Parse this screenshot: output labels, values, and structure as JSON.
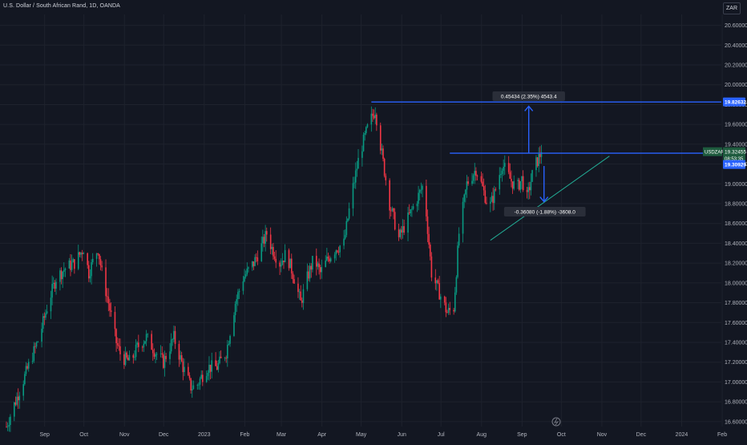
{
  "header": {
    "title": "U.S. Dollar / South African Rand, 1D, OANDA",
    "currency": "ZAR"
  },
  "colors": {
    "background": "#131722",
    "grid": "#1e222d",
    "up_candle": "#089981",
    "down_candle": "#f23645",
    "drawing_blue": "#2962ff",
    "trendline": "#22ab94",
    "axis_text": "#b2b5be"
  },
  "chart_data": {
    "type": "candlestick",
    "symbol": "USDZAR",
    "y_ticks": [
      16.6,
      16.8,
      17.0,
      17.2,
      17.4,
      17.6,
      17.8,
      18.0,
      18.2,
      18.4,
      18.6,
      18.8,
      19.0,
      19.2,
      19.4,
      19.6,
      19.8,
      20.0,
      20.2,
      20.4,
      20.6
    ],
    "ylim": [
      16.55,
      20.71
    ],
    "x_labels": [
      "Sep",
      "Oct",
      "Nov",
      "Dec",
      "2023",
      "Feb",
      "Mar",
      "Apr",
      "May",
      "Jun",
      "Jul",
      "Aug",
      "Sep",
      "Oct",
      "Nov",
      "Dec",
      "2024",
      "Feb"
    ],
    "x_label_months_offset": [
      0,
      1,
      2,
      3,
      4,
      5,
      6,
      7,
      8,
      9,
      10,
      11,
      12,
      13,
      14,
      15,
      16,
      17
    ],
    "start": "2022-08-23",
    "end_of_data": "2023-10-06",
    "series_path": [
      [
        "2022-08-23",
        16.55
      ],
      [
        "2022-08-27",
        16.7
      ],
      [
        "2022-09-03",
        16.95
      ],
      [
        "2022-09-10",
        17.2
      ],
      [
        "2022-09-17",
        17.45
      ],
      [
        "2022-09-24",
        17.8
      ],
      [
        "2022-09-30",
        18.05
      ],
      [
        "2022-10-07",
        18.15
      ],
      [
        "2022-10-14",
        18.2
      ],
      [
        "2022-10-21",
        18.35
      ],
      [
        "2022-10-25",
        18.1
      ],
      [
        "2022-10-29",
        18.25
      ],
      [
        "2022-11-01",
        18.35
      ],
      [
        "2022-11-04",
        18.1
      ],
      [
        "2022-11-09",
        17.8
      ],
      [
        "2022-11-15",
        17.4
      ],
      [
        "2022-11-19",
        17.25
      ],
      [
        "2022-11-26",
        17.2
      ],
      [
        "2022-12-01",
        17.35
      ],
      [
        "2022-12-08",
        17.45
      ],
      [
        "2022-12-15",
        17.3
      ],
      [
        "2022-12-21",
        17.2
      ],
      [
        "2022-12-29",
        17.45
      ],
      [
        "2023-01-05",
        17.15
      ],
      [
        "2023-01-11",
        16.95
      ],
      [
        "2023-01-15",
        16.95
      ],
      [
        "2023-01-19",
        17.05
      ],
      [
        "2023-01-24",
        17.15
      ],
      [
        "2023-01-31",
        17.15
      ],
      [
        "2023-02-07",
        17.3
      ],
      [
        "2023-02-14",
        17.8
      ],
      [
        "2023-02-20",
        18.05
      ],
      [
        "2023-02-28",
        18.2
      ],
      [
        "2023-03-07",
        18.4
      ],
      [
        "2023-03-10",
        18.5
      ],
      [
        "2023-03-14",
        18.35
      ],
      [
        "2023-03-20",
        18.2
      ],
      [
        "2023-03-25",
        18.3
      ],
      [
        "2023-03-31",
        18.05
      ],
      [
        "2023-04-05",
        17.8
      ],
      [
        "2023-04-10",
        18.05
      ],
      [
        "2023-04-15",
        18.25
      ],
      [
        "2023-04-20",
        18.1
      ],
      [
        "2023-04-26",
        18.25
      ],
      [
        "2023-05-02",
        18.35
      ],
      [
        "2023-05-08",
        18.4
      ],
      [
        "2023-05-14",
        18.9
      ],
      [
        "2023-05-20",
        19.3
      ],
      [
        "2023-05-27",
        19.6
      ],
      [
        "2023-06-01",
        19.75
      ],
      [
        "2023-06-06",
        19.3
      ],
      [
        "2023-06-12",
        18.8
      ],
      [
        "2023-06-19",
        18.45
      ],
      [
        "2023-06-26",
        18.65
      ],
      [
        "2023-07-03",
        18.85
      ],
      [
        "2023-07-08",
        19.0
      ],
      [
        "2023-07-14",
        18.1
      ],
      [
        "2023-07-20",
        17.9
      ],
      [
        "2023-07-26",
        17.7
      ],
      [
        "2023-07-31",
        17.75
      ],
      [
        "2023-08-04",
        18.5
      ],
      [
        "2023-08-10",
        19.0
      ],
      [
        "2023-08-17",
        19.15
      ],
      [
        "2023-08-21",
        19.0
      ],
      [
        "2023-08-27",
        18.75
      ],
      [
        "2023-08-31",
        18.9
      ],
      [
        "2023-09-06",
        19.2
      ],
      [
        "2023-09-12",
        19.05
      ],
      [
        "2023-09-17",
        18.95
      ],
      [
        "2023-09-21",
        19.05
      ],
      [
        "2023-09-25",
        18.85
      ],
      [
        "2023-09-30",
        19.15
      ],
      [
        "2023-10-06",
        19.32
      ]
    ],
    "annotations": {
      "resistance_high": 19.82632,
      "resistance_high_from": "2023-05-29",
      "range_top": 19.30929,
      "range_top_from": "2023-07-28",
      "range_top_to": "2023-11-27",
      "trendline": [
        [
          "2023-08-28",
          18.43
        ],
        [
          "2023-11-27",
          19.28
        ]
      ],
      "up_measure_label": "0.45434 (2.35%) 4543.4",
      "down_measure_label": "-0.36080 (-1.88%) -3608.0",
      "up_measure_from": 19.31,
      "up_measure_to": 19.8,
      "down_measure_from": 19.18,
      "down_measure_to": 18.82,
      "up_measure_date": "2023-09-30",
      "down_measure_date": "2023-10-08"
    },
    "price_labels": {
      "symbol_label": "USDZAR",
      "last_price": "19.32455",
      "countdown": "08:53:35",
      "range_top_label": "19.30929",
      "resistance_label": "19.82632"
    }
  }
}
